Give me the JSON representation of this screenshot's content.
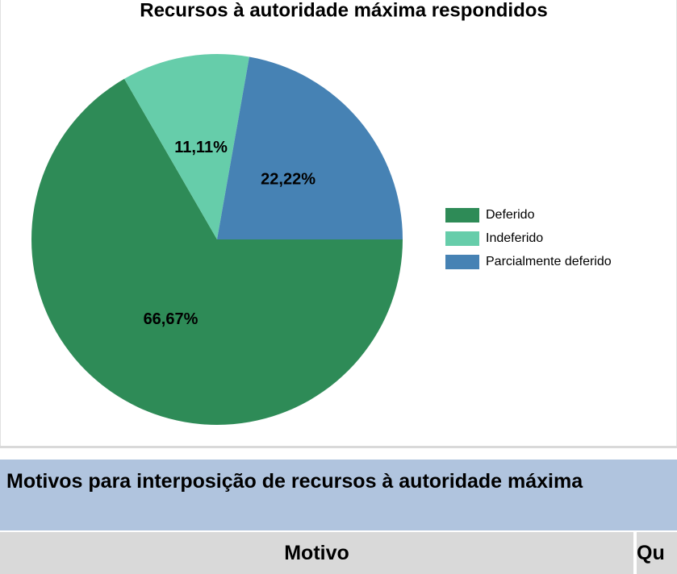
{
  "chart_data": {
    "type": "pie",
    "title": "Recursos à autoridade máxima respondidos",
    "categories": [
      "Deferido",
      "Indeferido",
      "Parcialmente deferido"
    ],
    "values": [
      66.67,
      11.11,
      22.22
    ],
    "value_labels": [
      "66,67%",
      "11,11%",
      "22,22%"
    ],
    "colors": [
      "#2e8b57",
      "#66cdaa",
      "#4682b4"
    ],
    "legend": "right"
  },
  "table": {
    "title": "Motivos para interposição de recursos à autoridade máxima",
    "header": [
      "Motivo",
      "Qu"
    ]
  }
}
